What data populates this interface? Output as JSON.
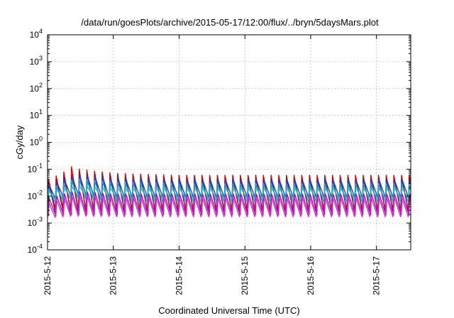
{
  "chart_data": {
    "type": "line",
    "title": "/data/run/goesPlots/archive/2015-05-17/12:00/flux/../bryn/5daysMars.plot",
    "xlabel": "Coordinated Universal Time (UTC)",
    "ylabel": "cGy/day",
    "yscale": "log",
    "ylim": [
      0.0001,
      10000
    ],
    "xlim": [
      "2015-05-12T00:00",
      "2015-05-17T12:30"
    ],
    "grid": true,
    "legend": "none",
    "y_ticks": [
      {
        "value": 0.0001,
        "base": "10",
        "exp": "-4"
      },
      {
        "value": 0.001,
        "base": "10",
        "exp": "-3"
      },
      {
        "value": 0.01,
        "base": "10",
        "exp": "-2"
      },
      {
        "value": 0.1,
        "base": "10",
        "exp": "-1"
      },
      {
        "value": 1,
        "base": "10",
        "exp": "0"
      },
      {
        "value": 10,
        "base": "10",
        "exp": "1"
      },
      {
        "value": 100,
        "base": "10",
        "exp": "2"
      },
      {
        "value": 1000,
        "base": "10",
        "exp": "3"
      },
      {
        "value": 10000,
        "base": "10",
        "exp": "4"
      }
    ],
    "x_ticks": [
      {
        "value": "2015-05-12T00:00",
        "label": "2015-5-12"
      },
      {
        "value": "2015-05-13T00:00",
        "label": "2015-5-13"
      },
      {
        "value": "2015-05-14T00:00",
        "label": "2015-5-14"
      },
      {
        "value": "2015-05-15T00:00",
        "label": "2015-5-15"
      },
      {
        "value": "2015-05-16T00:00",
        "label": "2015-5-16"
      },
      {
        "value": "2015-05-17T00:00",
        "label": "2015-5-17"
      }
    ],
    "series": [
      {
        "color": "#d40000",
        "x": [
          "2015-05-12T00:00",
          "2015-05-12T01:00",
          "2015-05-12T04:00",
          "2015-05-12T06:00",
          "2015-05-12T09:00",
          "2015-05-12T10:00",
          "2015-05-12T12:00",
          "2015-05-12T15:00",
          "2015-05-12T20:00",
          "2015-05-13T02:00",
          "2015-05-13T12:00",
          "2015-05-14T00:00",
          "2015-05-14T12:00",
          "2015-05-15T00:00",
          "2015-05-15T12:00",
          "2015-05-16T00:00",
          "2015-05-16T12:00",
          "2015-05-17T00:00",
          "2015-05-17T12:30"
        ],
        "peaks": [
          0.04,
          0.05,
          0.06,
          0.08,
          0.13,
          0.11,
          0.1,
          0.09,
          0.08,
          0.07,
          0.065,
          0.06,
          0.06,
          0.06,
          0.06,
          0.06,
          0.06,
          0.06,
          0.06
        ],
        "troughs": [
          0.002,
          0.003,
          0.0035,
          0.0035,
          0.003,
          0.003,
          0.003,
          0.003,
          0.003,
          0.003,
          0.003,
          0.003,
          0.003,
          0.003,
          0.003,
          0.003,
          0.003,
          0.003,
          0.003
        ]
      },
      {
        "color": "#7a1a2e",
        "x": [
          "2015-05-12T00:00",
          "2015-05-12T06:00",
          "2015-05-12T12:00",
          "2015-05-13T00:00",
          "2015-05-14T00:00",
          "2015-05-15T00:00",
          "2015-05-16T00:00",
          "2015-05-17T00:00",
          "2015-05-17T12:30"
        ],
        "peaks": [
          0.03,
          0.05,
          0.08,
          0.055,
          0.045,
          0.045,
          0.045,
          0.045,
          0.045
        ],
        "troughs": [
          0.002,
          0.0025,
          0.0025,
          0.0025,
          0.0025,
          0.0025,
          0.0025,
          0.0025,
          0.0025
        ]
      },
      {
        "color": "#1c3fd6",
        "x": [
          "2015-05-12T00:00",
          "2015-05-12T06:00",
          "2015-05-12T10:00",
          "2015-05-13T00:00",
          "2015-05-14T00:00",
          "2015-05-15T00:00",
          "2015-05-16T00:00",
          "2015-05-17T00:00",
          "2015-05-17T12:30"
        ],
        "peaks": [
          0.025,
          0.04,
          0.06,
          0.045,
          0.04,
          0.04,
          0.04,
          0.04,
          0.04
        ],
        "troughs": [
          0.006,
          0.009,
          0.01,
          0.008,
          0.008,
          0.008,
          0.008,
          0.008,
          0.008
        ]
      },
      {
        "color": "#1aa0e0",
        "x": [
          "2015-05-12T00:00",
          "2015-05-12T06:00",
          "2015-05-12T10:00",
          "2015-05-13T00:00",
          "2015-05-14T00:00",
          "2015-05-15T00:00",
          "2015-05-16T00:00",
          "2015-05-17T00:00",
          "2015-05-17T12:30"
        ],
        "peaks": [
          0.02,
          0.03,
          0.045,
          0.035,
          0.03,
          0.03,
          0.03,
          0.03,
          0.03
        ],
        "troughs": [
          0.005,
          0.007,
          0.008,
          0.006,
          0.006,
          0.006,
          0.006,
          0.006,
          0.006
        ]
      },
      {
        "color": "#1bb8a8",
        "x": [
          "2015-05-12T00:00",
          "2015-05-12T06:00",
          "2015-05-12T10:00",
          "2015-05-13T00:00",
          "2015-05-14T00:00",
          "2015-05-15T00:00",
          "2015-05-16T00:00",
          "2015-05-17T00:00",
          "2015-05-17T12:30"
        ],
        "peaks": [
          0.015,
          0.02,
          0.025,
          0.02,
          0.02,
          0.02,
          0.02,
          0.02,
          0.02
        ],
        "troughs": [
          0.007,
          0.008,
          0.009,
          0.008,
          0.008,
          0.008,
          0.008,
          0.008,
          0.008
        ]
      },
      {
        "color": "#a000c8",
        "x": [
          "2015-05-12T00:00",
          "2015-05-12T06:00",
          "2015-05-12T10:00",
          "2015-05-13T00:00",
          "2015-05-14T00:00",
          "2015-05-15T00:00",
          "2015-05-16T00:00",
          "2015-05-17T00:00",
          "2015-05-17T12:30"
        ],
        "peaks": [
          0.008,
          0.012,
          0.015,
          0.012,
          0.012,
          0.012,
          0.012,
          0.012,
          0.012
        ],
        "troughs": [
          0.0018,
          0.002,
          0.002,
          0.002,
          0.002,
          0.002,
          0.002,
          0.002,
          0.002
        ]
      },
      {
        "color": "#e020c8",
        "x": [
          "2015-05-12T00:00",
          "2015-05-12T06:00",
          "2015-05-12T10:00",
          "2015-05-13T00:00",
          "2015-05-14T00:00",
          "2015-05-15T00:00",
          "2015-05-16T00:00",
          "2015-05-17T00:00",
          "2015-05-17T12:30"
        ],
        "peaks": [
          0.006,
          0.01,
          0.012,
          0.01,
          0.01,
          0.01,
          0.01,
          0.01,
          0.01
        ],
        "troughs": [
          0.0015,
          0.0017,
          0.0018,
          0.0017,
          0.0017,
          0.0017,
          0.0017,
          0.0017,
          0.0017
        ]
      }
    ],
    "oscillation_period_hours": 2.8
  }
}
